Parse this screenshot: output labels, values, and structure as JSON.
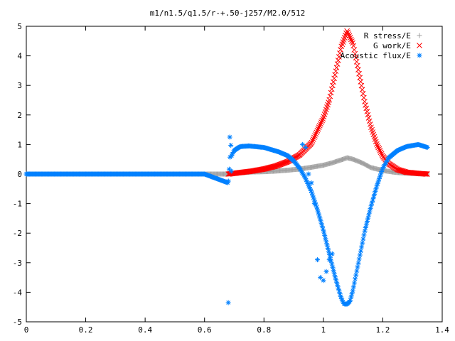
{
  "chart_data": {
    "type": "scatter",
    "title": "m1/n1.5/q1.5/r-+.50-j257/M2.0/512",
    "xlabel": "",
    "ylabel": "",
    "xlim": [
      0,
      1.4
    ],
    "ylim": [
      -5,
      5
    ],
    "x_ticks": [
      "0",
      "0.2",
      "0.4",
      "0.6",
      "0.8",
      "1",
      "1.2",
      "1.4"
    ],
    "y_ticks": [
      "5",
      "4",
      "3",
      "2",
      "1",
      "0",
      "-1",
      "-2",
      "-3",
      "-4",
      "-5"
    ],
    "grid": false,
    "legend_position": "top-right",
    "series": [
      {
        "name": "R stress/E",
        "marker": "plus",
        "color": "#a0a0a0",
        "x": [
          0.0,
          0.1,
          0.2,
          0.3,
          0.4,
          0.5,
          0.6,
          0.68,
          0.72,
          0.76,
          0.8,
          0.84,
          0.88,
          0.92,
          0.96,
          1.0,
          1.03,
          1.06,
          1.08,
          1.1,
          1.13,
          1.16,
          1.2,
          1.24,
          1.28,
          1.32,
          1.35
        ],
        "y": [
          0.0,
          0.0,
          0.0,
          0.0,
          0.0,
          0.0,
          0.0,
          0.0,
          0.04,
          0.07,
          0.08,
          0.1,
          0.13,
          0.17,
          0.23,
          0.3,
          0.38,
          0.48,
          0.55,
          0.5,
          0.38,
          0.22,
          0.12,
          0.06,
          0.03,
          0.01,
          0.0
        ]
      },
      {
        "name": "G work/E",
        "marker": "cross",
        "color": "#ff0000",
        "x": [
          0.68,
          0.72,
          0.76,
          0.8,
          0.84,
          0.88,
          0.92,
          0.96,
          1.0,
          1.02,
          1.04,
          1.06,
          1.08,
          1.1,
          1.12,
          1.14,
          1.16,
          1.18,
          1.2,
          1.22,
          1.25,
          1.28,
          1.32,
          1.35
        ],
        "y": [
          0.0,
          0.05,
          0.1,
          0.17,
          0.27,
          0.42,
          0.65,
          1.05,
          1.9,
          2.5,
          3.4,
          4.3,
          4.85,
          4.4,
          3.4,
          2.4,
          1.6,
          1.0,
          0.6,
          0.35,
          0.15,
          0.06,
          0.02,
          0.0
        ]
      },
      {
        "name": "Acoustic flux/E",
        "marker": "star",
        "color": "#0080ff",
        "x": [
          0.0,
          0.1,
          0.2,
          0.3,
          0.4,
          0.5,
          0.6,
          0.68,
          0.69,
          0.69,
          0.7,
          0.72,
          0.75,
          0.8,
          0.85,
          0.88,
          0.9,
          0.92,
          0.94,
          0.96,
          0.98,
          1.0,
          1.02,
          1.04,
          1.06,
          1.07,
          1.08,
          1.09,
          1.1,
          1.12,
          1.14,
          1.16,
          1.18,
          1.2,
          1.22,
          1.25,
          1.28,
          1.32,
          1.35,
          0.68,
          0.685,
          0.69,
          0.93,
          0.94,
          0.95,
          0.96,
          0.97,
          0.98,
          0.99,
          1.0,
          1.01,
          1.02,
          1.03
        ],
        "y": [
          0.0,
          0.0,
          0.0,
          0.0,
          0.0,
          0.0,
          0.0,
          -0.3,
          1.2,
          0.6,
          0.8,
          0.93,
          0.95,
          0.9,
          0.75,
          0.62,
          0.45,
          0.2,
          -0.15,
          -0.6,
          -1.2,
          -1.9,
          -2.7,
          -3.5,
          -4.2,
          -4.4,
          -4.4,
          -4.3,
          -3.9,
          -2.9,
          -1.9,
          -1.1,
          -0.4,
          0.2,
          0.55,
          0.8,
          0.93,
          1.0,
          0.9,
          -4.35,
          1.25,
          0.1,
          1.0,
          0.9,
          0.0,
          -0.3,
          -1.0,
          -2.9,
          -3.5,
          -3.6,
          -3.3,
          -2.9,
          -2.7
        ]
      }
    ]
  }
}
